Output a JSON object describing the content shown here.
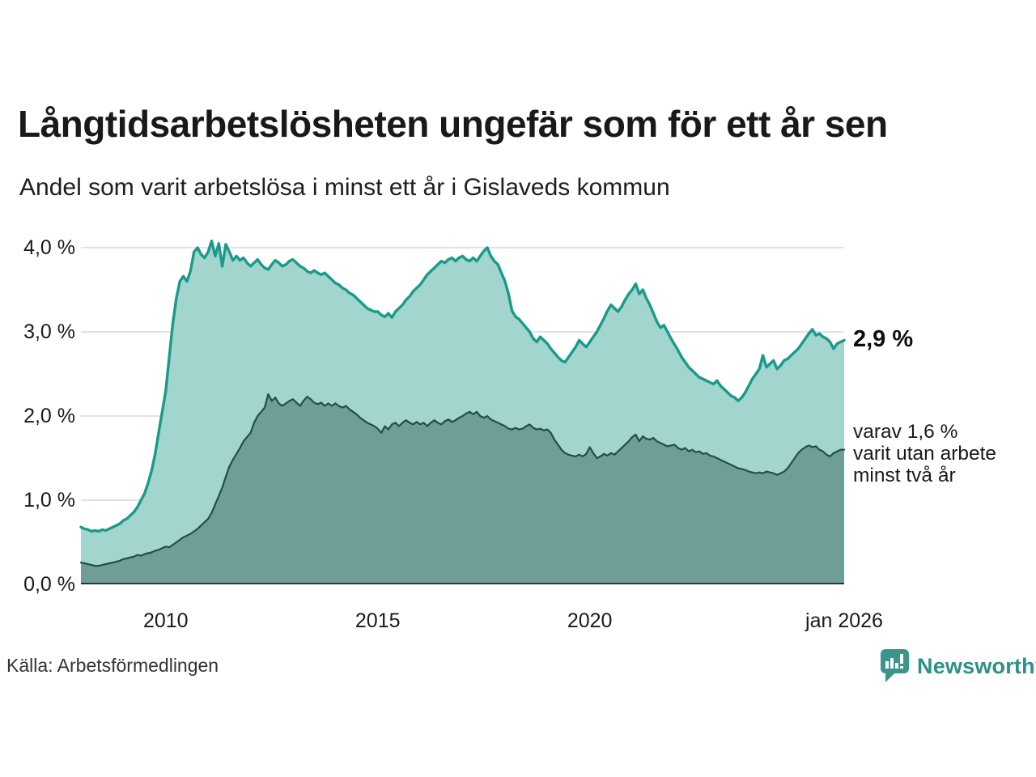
{
  "title": "Långtidsarbetslösheten ungefär som för ett år sen",
  "subtitle": "Andel som varit arbetslösa i minst ett år i Gislaveds kommun",
  "source": "Källa: Arbetsförmedlingen",
  "branding": {
    "name": "Newsworthy",
    "icon": "newsworthy-speech-bubble-bar-chart-icon",
    "wordmark_color": "#2f9089",
    "icon_color": "#3a958c"
  },
  "annotations": {
    "total_label": "2,9 %",
    "secondary_label_lines": [
      "varav 1,6 %",
      "varit utan arbete",
      "minst två år"
    ]
  },
  "colors": {
    "grid": "#d8d8d8",
    "axis_baseline": "#333333",
    "text": "#1a1a1a"
  },
  "chart_data": {
    "type": "area",
    "title": "Långtidsarbetslösheten ungefär som för ett år sen",
    "subtitle": "Andel som varit arbetslösa i minst ett år i Gislaveds kommun",
    "x_start_year": 2008,
    "x_end_year": 2026,
    "x_step_months": 1,
    "ylim": [
      0,
      4.2
    ],
    "y_gridlines": [
      1,
      2,
      3,
      4
    ],
    "y_ticks": [
      {
        "v": 4,
        "label": "4,0 %"
      },
      {
        "v": 3,
        "label": "3,0 %"
      },
      {
        "v": 2,
        "label": "2,0 %"
      },
      {
        "v": 1,
        "label": "1,0 %"
      },
      {
        "v": 0,
        "label": "0,0 %"
      }
    ],
    "x_ticks": [
      {
        "v": 2010,
        "label": "2010"
      },
      {
        "v": 2015,
        "label": "2015"
      },
      {
        "v": 2020,
        "label": "2020"
      },
      {
        "v": 2026,
        "label": "jan 2026"
      }
    ],
    "legend_position": "right-annotations",
    "grid": true,
    "series": [
      {
        "name": "Andel arbetslösa minst ett år",
        "end_value": 2.9,
        "end_label": "2,9 %",
        "line_color": "#1a9a8a",
        "fill_color": "#a2d5ce",
        "line_width": 3.4,
        "values": [
          0.68,
          0.66,
          0.65,
          0.63,
          0.64,
          0.63,
          0.65,
          0.64,
          0.66,
          0.68,
          0.7,
          0.72,
          0.76,
          0.78,
          0.82,
          0.86,
          0.92,
          1.0,
          1.08,
          1.2,
          1.35,
          1.55,
          1.8,
          2.05,
          2.3,
          2.7,
          3.1,
          3.4,
          3.6,
          3.66,
          3.6,
          3.72,
          3.95,
          4.0,
          3.92,
          3.88,
          3.95,
          4.08,
          3.9,
          4.05,
          3.78,
          4.04,
          3.95,
          3.85,
          3.9,
          3.85,
          3.88,
          3.82,
          3.78,
          3.82,
          3.86,
          3.8,
          3.76,
          3.74,
          3.8,
          3.85,
          3.82,
          3.78,
          3.8,
          3.84,
          3.86,
          3.82,
          3.78,
          3.76,
          3.72,
          3.7,
          3.73,
          3.7,
          3.68,
          3.7,
          3.66,
          3.62,
          3.58,
          3.56,
          3.52,
          3.5,
          3.46,
          3.44,
          3.4,
          3.36,
          3.32,
          3.28,
          3.26,
          3.24,
          3.24,
          3.2,
          3.18,
          3.22,
          3.17,
          3.24,
          3.28,
          3.32,
          3.38,
          3.42,
          3.48,
          3.52,
          3.56,
          3.62,
          3.68,
          3.72,
          3.76,
          3.8,
          3.84,
          3.82,
          3.86,
          3.88,
          3.84,
          3.88,
          3.9,
          3.86,
          3.84,
          3.88,
          3.84,
          3.9,
          3.96,
          4.0,
          3.9,
          3.84,
          3.8,
          3.7,
          3.6,
          3.45,
          3.25,
          3.18,
          3.15,
          3.1,
          3.05,
          3.0,
          2.92,
          2.88,
          2.94,
          2.9,
          2.86,
          2.8,
          2.75,
          2.7,
          2.66,
          2.64,
          2.7,
          2.76,
          2.82,
          2.9,
          2.86,
          2.82,
          2.88,
          2.94,
          3.0,
          3.08,
          3.16,
          3.25,
          3.32,
          3.28,
          3.24,
          3.3,
          3.38,
          3.45,
          3.5,
          3.57,
          3.45,
          3.5,
          3.4,
          3.32,
          3.22,
          3.12,
          3.05,
          3.08,
          3.0,
          2.92,
          2.85,
          2.78,
          2.7,
          2.64,
          2.58,
          2.54,
          2.5,
          2.46,
          2.44,
          2.42,
          2.4,
          2.38,
          2.42,
          2.36,
          2.32,
          2.28,
          2.24,
          2.22,
          2.18,
          2.22,
          2.28,
          2.36,
          2.44,
          2.5,
          2.56,
          2.72,
          2.58,
          2.62,
          2.66,
          2.56,
          2.6,
          2.66,
          2.68,
          2.72,
          2.76,
          2.8,
          2.86,
          2.92,
          2.98,
          3.03,
          2.96,
          2.98,
          2.94,
          2.92,
          2.88,
          2.8,
          2.86,
          2.88,
          2.9
        ]
      },
      {
        "name": "varav utan arbete minst två år",
        "end_value": 1.6,
        "end_label": "varav 1,6 % varit utan arbete minst två år",
        "line_color": "#20504a",
        "fill_color": "#6f9e99",
        "line_width": 2.2,
        "values": [
          0.26,
          0.25,
          0.24,
          0.23,
          0.22,
          0.22,
          0.23,
          0.24,
          0.25,
          0.26,
          0.27,
          0.28,
          0.3,
          0.31,
          0.32,
          0.33,
          0.35,
          0.34,
          0.36,
          0.37,
          0.38,
          0.4,
          0.41,
          0.43,
          0.45,
          0.44,
          0.47,
          0.5,
          0.53,
          0.56,
          0.58,
          0.6,
          0.63,
          0.66,
          0.7,
          0.74,
          0.78,
          0.85,
          0.95,
          1.05,
          1.15,
          1.28,
          1.4,
          1.48,
          1.55,
          1.62,
          1.7,
          1.75,
          1.8,
          1.92,
          2.0,
          2.05,
          2.1,
          2.26,
          2.18,
          2.22,
          2.15,
          2.12,
          2.15,
          2.18,
          2.2,
          2.16,
          2.12,
          2.18,
          2.23,
          2.2,
          2.16,
          2.14,
          2.16,
          2.12,
          2.15,
          2.12,
          2.15,
          2.12,
          2.1,
          2.12,
          2.08,
          2.05,
          2.02,
          1.98,
          1.95,
          1.92,
          1.9,
          1.88,
          1.85,
          1.8,
          1.88,
          1.84,
          1.9,
          1.92,
          1.88,
          1.92,
          1.95,
          1.92,
          1.9,
          1.93,
          1.9,
          1.92,
          1.88,
          1.92,
          1.95,
          1.92,
          1.9,
          1.94,
          1.96,
          1.93,
          1.95,
          1.98,
          2.0,
          2.03,
          2.05,
          2.02,
          2.05,
          2.0,
          1.98,
          2.0,
          1.96,
          1.94,
          1.92,
          1.9,
          1.88,
          1.85,
          1.84,
          1.86,
          1.84,
          1.85,
          1.88,
          1.9,
          1.86,
          1.84,
          1.85,
          1.83,
          1.84,
          1.8,
          1.72,
          1.66,
          1.6,
          1.56,
          1.54,
          1.53,
          1.52,
          1.54,
          1.52,
          1.55,
          1.63,
          1.56,
          1.5,
          1.52,
          1.55,
          1.53,
          1.56,
          1.54,
          1.58,
          1.62,
          1.66,
          1.7,
          1.75,
          1.78,
          1.7,
          1.76,
          1.73,
          1.72,
          1.74,
          1.7,
          1.68,
          1.66,
          1.64,
          1.65,
          1.66,
          1.62,
          1.6,
          1.62,
          1.58,
          1.6,
          1.57,
          1.58,
          1.55,
          1.56,
          1.53,
          1.52,
          1.5,
          1.48,
          1.46,
          1.44,
          1.42,
          1.4,
          1.38,
          1.37,
          1.36,
          1.34,
          1.33,
          1.32,
          1.33,
          1.32,
          1.34,
          1.33,
          1.32,
          1.3,
          1.32,
          1.34,
          1.38,
          1.44,
          1.5,
          1.56,
          1.6,
          1.63,
          1.65,
          1.63,
          1.64,
          1.6,
          1.58,
          1.54,
          1.52,
          1.56,
          1.58,
          1.6,
          1.6
        ]
      }
    ]
  }
}
